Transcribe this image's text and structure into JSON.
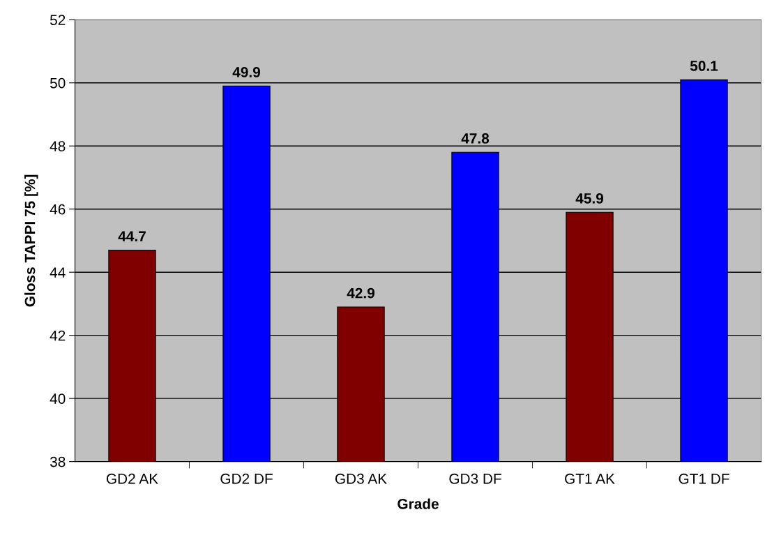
{
  "chart_data": {
    "type": "bar",
    "xlabel": "Grade",
    "ylabel": "Gloss TAPPI 75 [%]",
    "categories": [
      "GD2 AK",
      "GD2 DF",
      "GD3 AK",
      "GD3 DF",
      "GT1 AK",
      "GT1 DF"
    ],
    "values": [
      44.7,
      49.9,
      42.9,
      47.8,
      45.9,
      50.1
    ],
    "colors": [
      "#800000",
      "#0000ff",
      "#800000",
      "#0000ff",
      "#800000",
      "#0000ff"
    ],
    "ylim": [
      38,
      52
    ],
    "yticks": [
      38,
      40,
      42,
      44,
      46,
      48,
      50,
      52
    ],
    "grid": "y",
    "data_labels": true
  }
}
